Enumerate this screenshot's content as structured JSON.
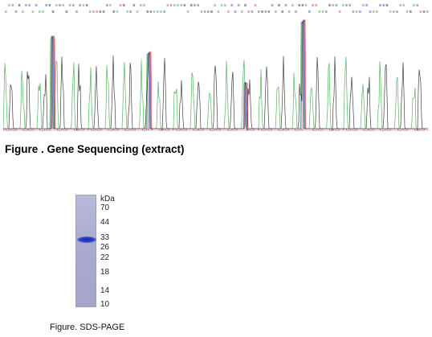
{
  "sequencing_figure": {
    "caption": "Figure . Gene Sequencing (extract)",
    "trace_colors": {
      "A": "#3aa648",
      "C": "#3a44c8",
      "G": "#222222",
      "T": "#d6404a"
    }
  },
  "gel_figure": {
    "unit_label": "kDa",
    "markers": [
      "70",
      "44",
      "33",
      "26",
      "22",
      "18",
      "14",
      "10"
    ],
    "caption": "Figure. SDS-PAGE"
  }
}
